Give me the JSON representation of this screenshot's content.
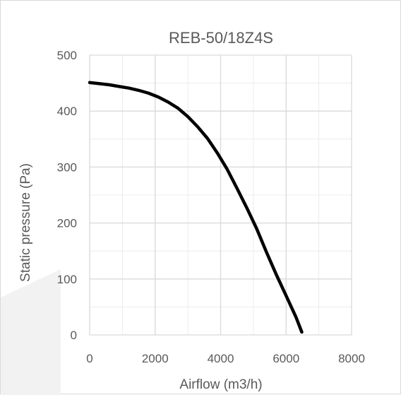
{
  "colors": {
    "major_grid": "#d9d9d9",
    "minor_grid": "#ececec",
    "curve": "#000000",
    "text": "#595959",
    "watermark": "#f2f2f2"
  },
  "chart_data": {
    "type": "line",
    "title": "REB-50/18Z4S",
    "xlabel": "Airflow (m3/h)",
    "ylabel": "Static pressure (Pa)",
    "xlim": [
      0,
      8000
    ],
    "ylim": [
      0,
      500
    ],
    "x_major_step": 2000,
    "x_minor_step": 1000,
    "y_major_step": 100,
    "y_minor_step": 50,
    "x_ticks": [
      "0",
      "2000",
      "4000",
      "6000",
      "8000"
    ],
    "y_ticks": [
      "0",
      "100",
      "200",
      "300",
      "400",
      "500"
    ],
    "grid": true,
    "legend": "none",
    "series": [
      {
        "x": [
          0,
          300,
          600,
          900,
          1200,
          1500,
          1800,
          2100,
          2400,
          2700,
          3000,
          3300,
          3600,
          3900,
          4200,
          4500,
          4800,
          5100,
          5400,
          5700,
          6000,
          6300,
          6480
        ],
        "values": [
          451,
          449,
          447,
          444,
          441,
          437,
          432,
          425,
          416,
          405,
          390,
          372,
          351,
          325,
          296,
          262,
          227,
          190,
          148,
          108,
          70,
          32,
          5
        ]
      }
    ]
  }
}
